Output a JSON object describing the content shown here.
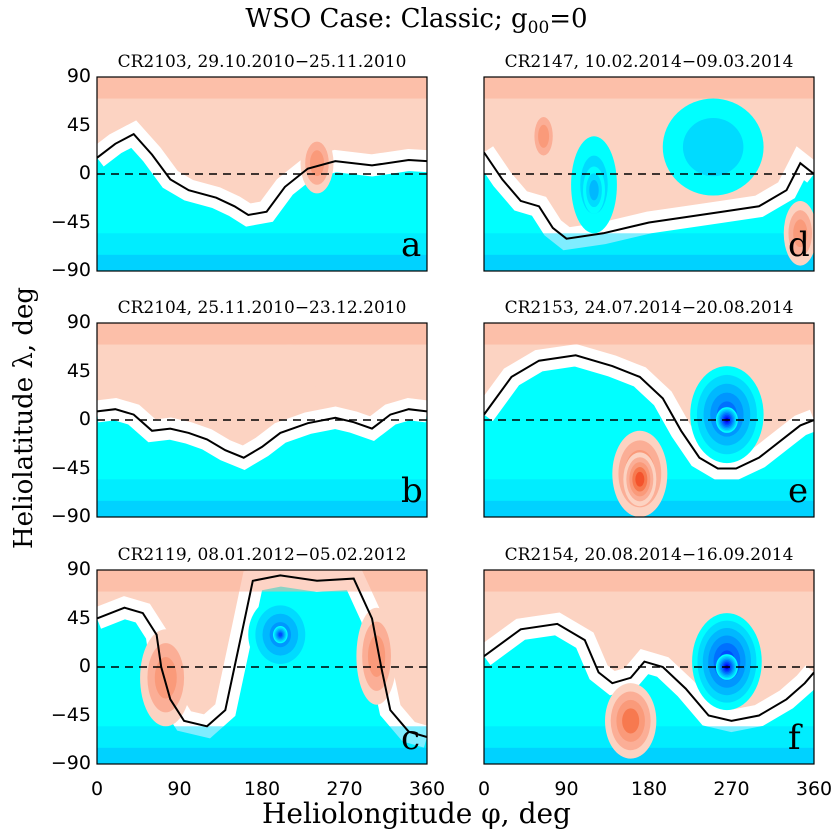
{
  "title_prefix": "WSO Case: Classic; g",
  "title_subscript": "00",
  "title_suffix": "=0",
  "xlabel": "Heliolongitude φ, deg",
  "ylabel": "Heliolatitude λ, deg",
  "colors": {
    "red_levels": [
      "#fcd3c2",
      "#fbae96",
      "#fa9a7a",
      "#f7794f",
      "#f4532c"
    ],
    "blue_levels": [
      "#00ffff",
      "#00dbff",
      "#00b8ff",
      "#0096ff",
      "#0070ff",
      "#004cff",
      "#0028ff",
      "#0000e6"
    ],
    "neutral_line": "#000000"
  },
  "chart_data": [
    {
      "type": "heatmap",
      "label": "a",
      "title": "CR2103, 29.10.2010−25.11.2010",
      "xlim": [
        0,
        360
      ],
      "ylim": [
        -90,
        90
      ],
      "xticks": [
        0,
        90,
        180,
        270,
        360
      ],
      "yticks": [
        90,
        45,
        0,
        -45,
        -90
      ],
      "neutral_line": [
        [
          0,
          15
        ],
        [
          20,
          28
        ],
        [
          40,
          37
        ],
        [
          60,
          18
        ],
        [
          80,
          -5
        ],
        [
          100,
          -15
        ],
        [
          130,
          -22
        ],
        [
          150,
          -30
        ],
        [
          165,
          -38
        ],
        [
          185,
          -35
        ],
        [
          205,
          -12
        ],
        [
          230,
          5
        ],
        [
          260,
          12
        ],
        [
          300,
          8
        ],
        [
          340,
          13
        ],
        [
          360,
          12
        ]
      ],
      "blobs": [
        {
          "sign": 1,
          "level": 2,
          "x": 240,
          "y": 10,
          "rx": 18,
          "ry": 28
        }
      ]
    },
    {
      "type": "heatmap",
      "label": "d",
      "title": "CR2147, 10.02.2014−09.03.2014",
      "xlim": [
        0,
        360
      ],
      "ylim": [
        -90,
        90
      ],
      "xticks": [
        0,
        90,
        180,
        270,
        360
      ],
      "yticks": [
        90,
        45,
        0,
        -45,
        -90
      ],
      "neutral_line": [
        [
          0,
          20
        ],
        [
          20,
          -5
        ],
        [
          40,
          -25
        ],
        [
          60,
          -30
        ],
        [
          75,
          -50
        ],
        [
          90,
          -60
        ],
        [
          130,
          -55
        ],
        [
          180,
          -45
        ],
        [
          220,
          -40
        ],
        [
          260,
          -35
        ],
        [
          300,
          -30
        ],
        [
          330,
          -15
        ],
        [
          345,
          10
        ],
        [
          360,
          0
        ]
      ],
      "blobs": [
        {
          "sign": -1,
          "level": 1,
          "x": 120,
          "y": -10,
          "rx": 25,
          "ry": 45
        },
        {
          "sign": -1,
          "level": 2,
          "x": 120,
          "y": -15,
          "rx": 12,
          "ry": 22
        },
        {
          "sign": -1,
          "level": 1,
          "x": 250,
          "y": 25,
          "rx": 55,
          "ry": 45
        },
        {
          "sign": 1,
          "level": 2,
          "x": 65,
          "y": 35,
          "rx": 14,
          "ry": 25
        },
        {
          "sign": 1,
          "level": 2,
          "x": 345,
          "y": -55,
          "rx": 18,
          "ry": 30
        }
      ]
    },
    {
      "type": "heatmap",
      "label": "b",
      "title": "CR2104, 25.11.2010−23.12.2010",
      "xlim": [
        0,
        360
      ],
      "ylim": [
        -90,
        90
      ],
      "xticks": [
        0,
        90,
        180,
        270,
        360
      ],
      "yticks": [
        90,
        45,
        0,
        -45,
        -90
      ],
      "neutral_line": [
        [
          0,
          8
        ],
        [
          20,
          10
        ],
        [
          40,
          5
        ],
        [
          60,
          -10
        ],
        [
          80,
          -8
        ],
        [
          100,
          -12
        ],
        [
          120,
          -18
        ],
        [
          140,
          -28
        ],
        [
          160,
          -35
        ],
        [
          180,
          -25
        ],
        [
          200,
          -12
        ],
        [
          230,
          -3
        ],
        [
          260,
          2
        ],
        [
          280,
          -2
        ],
        [
          300,
          -8
        ],
        [
          320,
          5
        ],
        [
          340,
          10
        ],
        [
          360,
          8
        ]
      ],
      "blobs": [
        {
          "sign": 1,
          "level": 0,
          "x": 210,
          "y": 40,
          "rx": 30,
          "ry": 30
        }
      ]
    },
    {
      "type": "heatmap",
      "label": "e",
      "title": "CR2153, 24.07.2014−20.08.2014",
      "xlim": [
        0,
        360
      ],
      "ylim": [
        -90,
        90
      ],
      "xticks": [
        0,
        90,
        180,
        270,
        360
      ],
      "yticks": [
        90,
        45,
        0,
        -45,
        -90
      ],
      "neutral_line": [
        [
          0,
          5
        ],
        [
          30,
          40
        ],
        [
          60,
          55
        ],
        [
          100,
          60
        ],
        [
          140,
          50
        ],
        [
          170,
          40
        ],
        [
          195,
          20
        ],
        [
          215,
          -10
        ],
        [
          235,
          -35
        ],
        [
          255,
          -45
        ],
        [
          275,
          -45
        ],
        [
          300,
          -35
        ],
        [
          330,
          -15
        ],
        [
          345,
          -5
        ],
        [
          360,
          0
        ]
      ],
      "blobs": [
        {
          "sign": -1,
          "level": 4,
          "x": 265,
          "y": 5,
          "rx": 40,
          "ry": 45
        },
        {
          "sign": -1,
          "level": 7,
          "x": 265,
          "y": 0,
          "rx": 12,
          "ry": 12
        },
        {
          "sign": 1,
          "level": 3,
          "x": 170,
          "y": -50,
          "rx": 30,
          "ry": 40
        },
        {
          "sign": 1,
          "level": 4,
          "x": 170,
          "y": -55,
          "rx": 18,
          "ry": 25
        }
      ]
    },
    {
      "type": "heatmap",
      "label": "c",
      "title": "CR2119, 08.01.2012−05.02.2012",
      "xlim": [
        0,
        360
      ],
      "ylim": [
        -90,
        90
      ],
      "xticks": [
        0,
        90,
        180,
        270,
        360
      ],
      "yticks": [
        90,
        45,
        0,
        -45,
        -90
      ],
      "neutral_line": [
        [
          0,
          45
        ],
        [
          30,
          55
        ],
        [
          50,
          50
        ],
        [
          65,
          30
        ],
        [
          70,
          0
        ],
        [
          80,
          -30
        ],
        [
          95,
          -50
        ],
        [
          120,
          -55
        ],
        [
          140,
          -40
        ],
        [
          150,
          0
        ],
        [
          160,
          40
        ],
        [
          170,
          80
        ],
        [
          200,
          85
        ],
        [
          240,
          80
        ],
        [
          280,
          82
        ],
        [
          300,
          45
        ],
        [
          310,
          0
        ],
        [
          320,
          -40
        ],
        [
          340,
          -60
        ],
        [
          360,
          -65
        ]
      ],
      "blobs": [
        {
          "sign": -1,
          "level": 3,
          "x": 200,
          "y": 30,
          "rx": 35,
          "ry": 35
        },
        {
          "sign": -1,
          "level": 5,
          "x": 200,
          "y": 30,
          "rx": 8,
          "ry": 8
        },
        {
          "sign": 1,
          "level": 2,
          "x": 75,
          "y": -10,
          "rx": 28,
          "ry": 45
        },
        {
          "sign": 1,
          "level": 2,
          "x": 305,
          "y": 10,
          "rx": 22,
          "ry": 45
        }
      ]
    },
    {
      "type": "heatmap",
      "label": "f",
      "title": "CR2154, 20.08.2014−16.09.2014",
      "xlim": [
        0,
        360
      ],
      "ylim": [
        -90,
        90
      ],
      "xticks": [
        0,
        90,
        180,
        270,
        360
      ],
      "yticks": [
        90,
        45,
        0,
        -45,
        -90
      ],
      "neutral_line": [
        [
          0,
          10
        ],
        [
          40,
          35
        ],
        [
          80,
          40
        ],
        [
          110,
          25
        ],
        [
          125,
          -5
        ],
        [
          140,
          -15
        ],
        [
          160,
          -10
        ],
        [
          175,
          5
        ],
        [
          195,
          0
        ],
        [
          220,
          -20
        ],
        [
          245,
          -45
        ],
        [
          270,
          -50
        ],
        [
          300,
          -45
        ],
        [
          330,
          -30
        ],
        [
          350,
          -15
        ],
        [
          360,
          -5
        ]
      ],
      "blobs": [
        {
          "sign": -1,
          "level": 5,
          "x": 265,
          "y": 5,
          "rx": 38,
          "ry": 45
        },
        {
          "sign": -1,
          "level": 7,
          "x": 265,
          "y": 0,
          "rx": 12,
          "ry": 12
        },
        {
          "sign": 1,
          "level": 3,
          "x": 160,
          "y": -50,
          "rx": 28,
          "ry": 35
        }
      ]
    }
  ]
}
